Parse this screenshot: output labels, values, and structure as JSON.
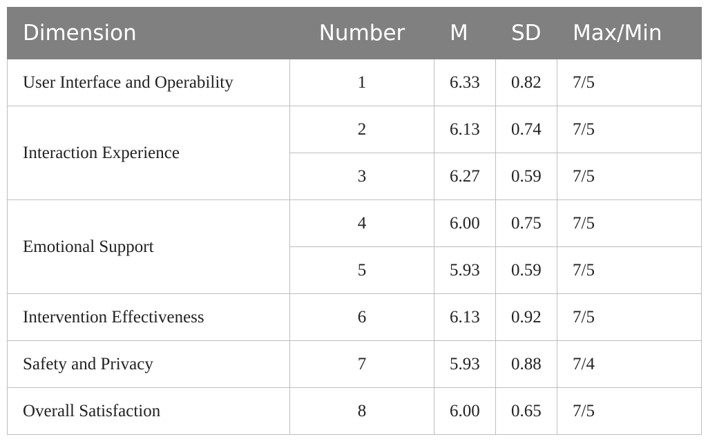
{
  "table": {
    "header": [
      "Dimension",
      "Number",
      "M",
      "SD",
      "Max/Min"
    ],
    "groups": [
      {
        "dimension": "User Interface and Operability",
        "rows": [
          [
            "1",
            "6.33",
            "0.82",
            "7/5"
          ]
        ]
      },
      {
        "dimension": "Interaction Experience",
        "rows": [
          [
            "2",
            "6.13",
            "0.74",
            "7/5"
          ],
          [
            "3",
            "6.27",
            "0.59",
            "7/5"
          ]
        ]
      },
      {
        "dimension": "Emotional Support",
        "rows": [
          [
            "4",
            "6.00",
            "0.75",
            "7/5"
          ],
          [
            "5",
            "5.93",
            "0.59",
            "7/5"
          ]
        ]
      },
      {
        "dimension": "Intervention Effectiveness",
        "rows": [
          [
            "6",
            "6.13",
            "0.92",
            "7/5"
          ]
        ]
      },
      {
        "dimension": "Safety and Privacy",
        "rows": [
          [
            "7",
            "5.93",
            "0.88",
            "7/4"
          ]
        ]
      },
      {
        "dimension": "Overall Satisfaction",
        "rows": [
          [
            "8",
            "6.00",
            "0.65",
            "7/5"
          ]
        ]
      }
    ]
  }
}
